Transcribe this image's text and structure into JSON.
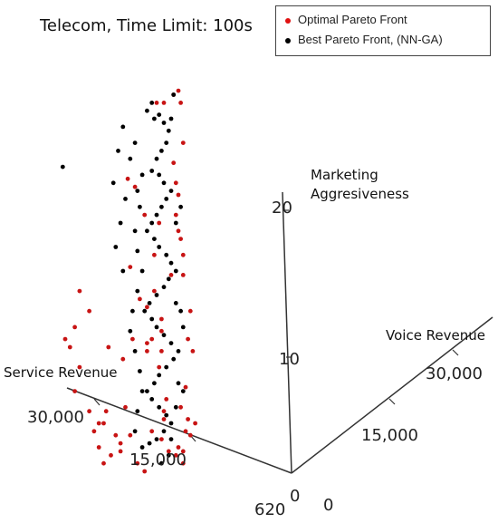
{
  "chart_data": {
    "type": "scatter",
    "title": "Telecom, Time Limit: 100s",
    "axes": {
      "x": {
        "label": "Service Revenue",
        "ticks": [
          "30,000",
          "15,000"
        ],
        "origin_label": "620"
      },
      "y": {
        "label": "Voice Revenue",
        "ticks": [
          "30,000",
          "15,000"
        ],
        "origin_label": "0"
      },
      "z": {
        "label_line1": "Marketing",
        "label_line2": "Aggresiveness",
        "ticks": [
          "20",
          "10"
        ],
        "origin_label": "0"
      }
    },
    "legend": {
      "placement": "top-right",
      "entries": [
        {
          "label": "Optimal Pareto Front",
          "color": "#e01010"
        },
        {
          "label": "Best Pareto Front, (NN-GA)",
          "color": "#000000"
        }
      ]
    },
    "series": [
      {
        "name": "Optimal Pareto Front",
        "color": "#c81414",
        "points": [
          [
            0.44,
            0.92
          ],
          [
            0.47,
            0.92
          ],
          [
            0.51,
            0.94
          ],
          [
            0.54,
            0.92
          ],
          [
            0.53,
            0.95
          ],
          [
            0.55,
            0.82
          ],
          [
            0.51,
            0.77
          ],
          [
            0.52,
            0.72
          ],
          [
            0.53,
            0.69
          ],
          [
            0.52,
            0.64
          ],
          [
            0.53,
            0.6
          ],
          [
            0.54,
            0.58
          ],
          [
            0.55,
            0.54
          ],
          [
            0.55,
            0.49
          ],
          [
            0.5,
            0.49
          ],
          [
            0.39,
            0.64
          ],
          [
            0.43,
            0.54
          ],
          [
            0.4,
            0.41
          ],
          [
            0.43,
            0.45
          ],
          [
            0.4,
            0.32
          ],
          [
            0.42,
            0.33
          ],
          [
            0.4,
            0.3
          ],
          [
            0.34,
            0.33
          ],
          [
            0.3,
            0.28
          ],
          [
            0.31,
            0.16
          ],
          [
            0.24,
            0.31
          ],
          [
            0.23,
            0.15
          ],
          [
            0.22,
            0.12
          ],
          [
            0.2,
            0.12
          ],
          [
            0.27,
            0.09
          ],
          [
            0.33,
            0.09
          ],
          [
            0.29,
            0.05
          ],
          [
            0.29,
            0.07
          ],
          [
            0.25,
            0.04
          ],
          [
            0.36,
            0.02
          ],
          [
            0.39,
            0.0
          ],
          [
            0.1,
            0.36
          ],
          [
            0.06,
            0.33
          ],
          [
            0.08,
            0.31
          ],
          [
            0.12,
            0.26
          ],
          [
            0.1,
            0.2
          ],
          [
            0.16,
            0.15
          ],
          [
            0.18,
            0.1
          ],
          [
            0.2,
            0.06
          ],
          [
            0.22,
            0.02
          ],
          [
            0.16,
            0.4
          ],
          [
            0.12,
            0.45
          ],
          [
            0.32,
            0.73
          ],
          [
            0.35,
            0.71
          ],
          [
            0.33,
            0.51
          ],
          [
            0.37,
            0.43
          ],
          [
            0.45,
            0.62
          ],
          [
            0.46,
            0.38
          ],
          [
            0.46,
            0.35
          ],
          [
            0.46,
            0.3
          ],
          [
            0.45,
            0.26
          ],
          [
            0.48,
            0.18
          ],
          [
            0.47,
            0.15
          ],
          [
            0.47,
            0.13
          ],
          [
            0.53,
            0.06
          ],
          [
            0.55,
            0.05
          ],
          [
            0.52,
            0.04
          ],
          [
            0.58,
            0.4
          ],
          [
            0.59,
            0.3
          ],
          [
            0.57,
            0.33
          ],
          [
            0.56,
            0.21
          ],
          [
            0.57,
            0.13
          ],
          [
            0.58,
            0.09
          ],
          [
            0.56,
            0.1
          ],
          [
            0.54,
            0.16
          ],
          [
            0.6,
            0.12
          ],
          [
            0.46,
            0.08
          ],
          [
            0.42,
            0.1
          ],
          [
            0.55,
            0.02
          ],
          [
            0.49,
            0.05
          ]
        ]
      },
      {
        "name": "Best Pareto Front, (NN-GA)",
        "color": "#000000",
        "points": [
          [
            0.4,
            0.9
          ],
          [
            0.42,
            0.92
          ],
          [
            0.43,
            0.88
          ],
          [
            0.45,
            0.89
          ],
          [
            0.47,
            0.87
          ],
          [
            0.49,
            0.85
          ],
          [
            0.5,
            0.88
          ],
          [
            0.48,
            0.82
          ],
          [
            0.46,
            0.8
          ],
          [
            0.44,
            0.78
          ],
          [
            0.42,
            0.75
          ],
          [
            0.45,
            0.74
          ],
          [
            0.47,
            0.72
          ],
          [
            0.5,
            0.7
          ],
          [
            0.48,
            0.68
          ],
          [
            0.46,
            0.66
          ],
          [
            0.44,
            0.64
          ],
          [
            0.42,
            0.62
          ],
          [
            0.4,
            0.6
          ],
          [
            0.43,
            0.58
          ],
          [
            0.45,
            0.56
          ],
          [
            0.48,
            0.54
          ],
          [
            0.5,
            0.52
          ],
          [
            0.52,
            0.5
          ],
          [
            0.49,
            0.48
          ],
          [
            0.47,
            0.46
          ],
          [
            0.44,
            0.44
          ],
          [
            0.41,
            0.42
          ],
          [
            0.39,
            0.4
          ],
          [
            0.42,
            0.38
          ],
          [
            0.44,
            0.36
          ],
          [
            0.47,
            0.34
          ],
          [
            0.5,
            0.32
          ],
          [
            0.53,
            0.3
          ],
          [
            0.51,
            0.28
          ],
          [
            0.48,
            0.26
          ],
          [
            0.45,
            0.24
          ],
          [
            0.43,
            0.22
          ],
          [
            0.4,
            0.2
          ],
          [
            0.42,
            0.18
          ],
          [
            0.45,
            0.16
          ],
          [
            0.48,
            0.14
          ],
          [
            0.5,
            0.12
          ],
          [
            0.47,
            0.1
          ],
          [
            0.44,
            0.08
          ],
          [
            0.41,
            0.07
          ],
          [
            0.38,
            0.06
          ],
          [
            0.35,
            0.82
          ],
          [
            0.33,
            0.78
          ],
          [
            0.36,
            0.7
          ],
          [
            0.38,
            0.74
          ],
          [
            0.37,
            0.66
          ],
          [
            0.35,
            0.6
          ],
          [
            0.36,
            0.55
          ],
          [
            0.38,
            0.5
          ],
          [
            0.36,
            0.45
          ],
          [
            0.34,
            0.4
          ],
          [
            0.33,
            0.35
          ],
          [
            0.35,
            0.3
          ],
          [
            0.37,
            0.25
          ],
          [
            0.38,
            0.2
          ],
          [
            0.36,
            0.15
          ],
          [
            0.35,
            0.1
          ],
          [
            0.52,
            0.62
          ],
          [
            0.54,
            0.66
          ],
          [
            0.52,
            0.42
          ],
          [
            0.54,
            0.4
          ],
          [
            0.55,
            0.36
          ],
          [
            0.53,
            0.22
          ],
          [
            0.55,
            0.2
          ],
          [
            0.52,
            0.16
          ],
          [
            0.5,
            0.08
          ],
          [
            0.49,
            0.04
          ],
          [
            0.46,
            0.02
          ],
          [
            0.51,
            0.94
          ],
          [
            0.3,
            0.86
          ],
          [
            0.28,
            0.8
          ],
          [
            0.26,
            0.72
          ],
          [
            0.31,
            0.68
          ],
          [
            0.29,
            0.62
          ],
          [
            0.27,
            0.56
          ],
          [
            0.3,
            0.5
          ],
          [
            0.05,
            0.76
          ]
        ]
      }
    ]
  }
}
